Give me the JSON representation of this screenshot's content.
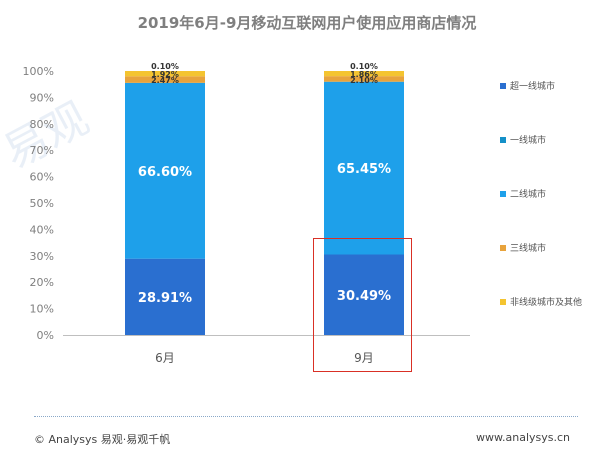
{
  "chart_data": {
    "type": "bar",
    "stacked": true,
    "percent_axis": true,
    "title": "2019年6月-9月移动互联网用户使用应用商店情况",
    "categories": [
      "6月",
      "9月"
    ],
    "ylim": [
      0,
      100
    ],
    "yticks": [
      "0%",
      "10%",
      "20%",
      "30%",
      "40%",
      "50%",
      "60%",
      "70%",
      "80%",
      "90%",
      "100%"
    ],
    "grid": false,
    "legend_position": "right",
    "series": [
      {
        "name": "超一线城市",
        "values": [
          28.91,
          30.49
        ],
        "labels": [
          "28.91%",
          "30.49%"
        ],
        "color": "#2a6fd0"
      },
      {
        "name": "一线城市",
        "values": [
          0,
          0
        ],
        "labels": [
          "",
          ""
        ],
        "color": "#1590c8"
      },
      {
        "name": "二线城市",
        "values": [
          66.6,
          65.45
        ],
        "labels": [
          "66.60%",
          "65.45%"
        ],
        "color": "#1ea0ea"
      },
      {
        "name": "三线城市",
        "values": [
          2.47,
          2.1
        ],
        "labels": [
          "2.47%",
          "2.10%"
        ],
        "color": "#e8a33c"
      },
      {
        "name": "非线级城市及其他",
        "values": [
          1.92,
          1.86
        ],
        "labels": [
          "1.92%",
          "1.86%"
        ],
        "color": "#f4c430"
      },
      {
        "name": "",
        "values": [
          0.1,
          0.1
        ],
        "labels": [
          "0.10%",
          "0.10%"
        ],
        "color": "#f4c430"
      }
    ]
  },
  "watermark": "易观",
  "footer": {
    "left": "© Analysys 易观·易观千帆",
    "right": "www.analysys.cn"
  }
}
